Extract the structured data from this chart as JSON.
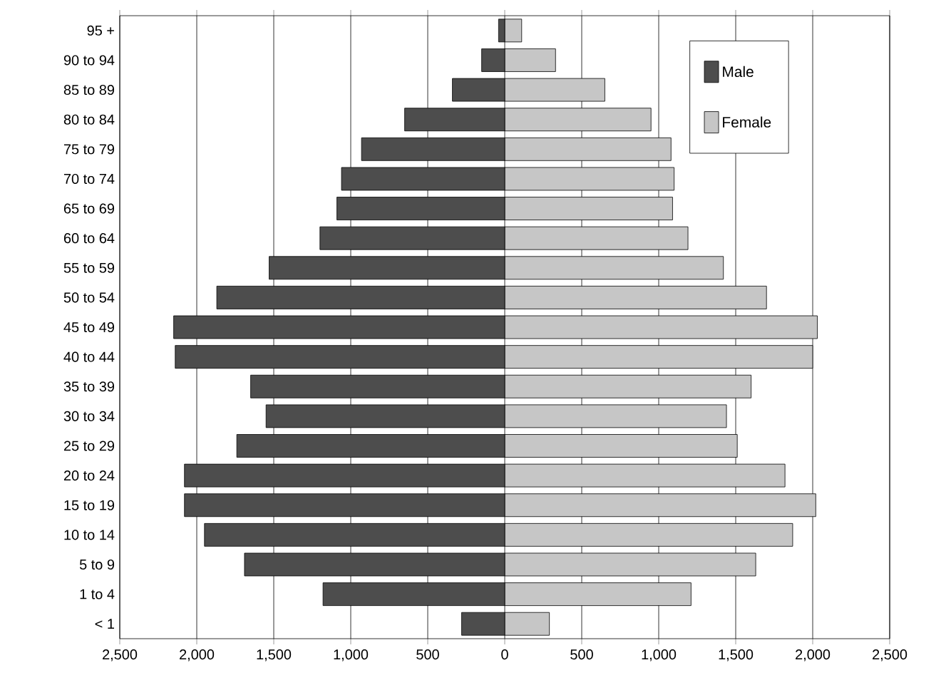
{
  "chart_data": {
    "type": "bar",
    "orientation": "horizontal",
    "stacked": true,
    "categories": [
      "95 +",
      "90 to 94",
      "85 to 89",
      "80 to 84",
      "75 to 79",
      "70 to 74",
      "65 to 69",
      "60 to 64",
      "55 to 59",
      "50 to 54",
      "45 to 49",
      "40 to 44",
      "35 to 39",
      "30 to 34",
      "25 to 29",
      "20 to 24",
      "15 to 19",
      "10 to 14",
      "5 to 9",
      "1 to 4",
      "< 1"
    ],
    "series": [
      {
        "name": "Male",
        "color": "#4d4d4d",
        "values": [
          -40,
          -150,
          -340,
          -650,
          -930,
          -1060,
          -1090,
          -1200,
          -1530,
          -1870,
          -2150,
          -2140,
          -1650,
          -1550,
          -1740,
          -2080,
          -2080,
          -1950,
          -1690,
          -1180,
          -280
        ]
      },
      {
        "name": "Female",
        "color": "#c6c6c6",
        "values": [
          110,
          330,
          650,
          950,
          1080,
          1100,
          1090,
          1190,
          1420,
          1700,
          2030,
          2000,
          1600,
          1440,
          1510,
          1820,
          2020,
          1870,
          1630,
          1210,
          290
        ]
      }
    ],
    "xlim": [
      -2500,
      2500
    ],
    "xticks": [
      {
        "value": -2500,
        "label": "2,500"
      },
      {
        "value": -2000,
        "label": "2,000"
      },
      {
        "value": -1500,
        "label": "1,500"
      },
      {
        "value": -1000,
        "label": "1,000"
      },
      {
        "value": -500,
        "label": "500"
      },
      0,
      500,
      {
        "value": 1000,
        "label": "1,000"
      },
      {
        "value": 1500,
        "label": "1,500"
      },
      {
        "value": 2000,
        "label": "2,000"
      },
      {
        "value": 2500,
        "label": "2,500"
      }
    ],
    "grid": "x",
    "legend": "top right"
  }
}
